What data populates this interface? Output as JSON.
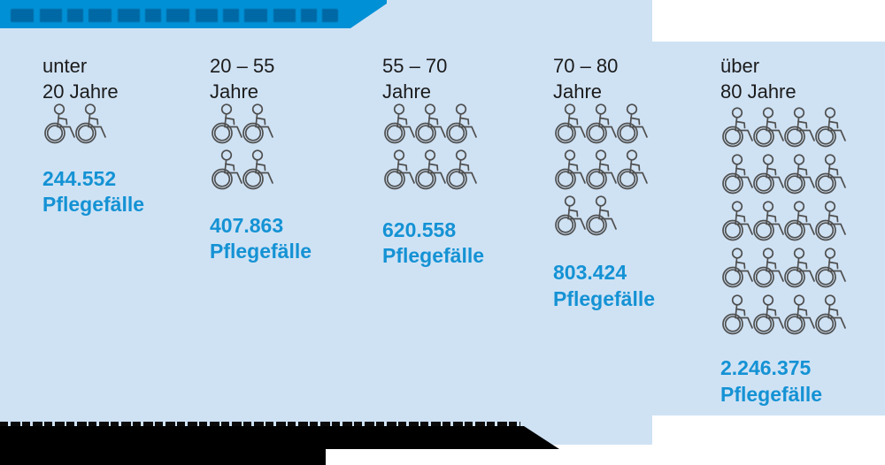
{
  "colors": {
    "panel_light_blue": "#cfe2f4",
    "banner_blue": "#0090d6",
    "value_blue": "#1492d4",
    "label_black": "#1b1b1b",
    "icon_gray": "#4f4f4f",
    "footer_black": "#000000"
  },
  "columns": [
    {
      "label_line1": "unter",
      "label_line2": "20 Jahre",
      "value": "244.552",
      "unit": "Pflegefälle",
      "icon_rows": [
        2
      ]
    },
    {
      "label_line1": "20 – 55",
      "label_line2": "Jahre",
      "value": "407.863",
      "unit": "Pflegefälle",
      "icon_rows": [
        2,
        2
      ]
    },
    {
      "label_line1": "55 – 70",
      "label_line2": "Jahre",
      "value": "620.558",
      "unit": "Pflegefälle",
      "icon_rows": [
        3,
        3
      ]
    },
    {
      "label_line1": "70 – 80",
      "label_line2": "Jahre",
      "value": "803.424",
      "unit": "Pflegefälle",
      "icon_rows": [
        3,
        3,
        2
      ]
    },
    {
      "label_line1": "über",
      "label_line2": "80 Jahre",
      "value": "2.246.375",
      "unit": "Pflegefälle",
      "icon_rows": [
        4,
        4,
        4,
        4,
        4
      ]
    }
  ],
  "chart_data": {
    "type": "bar",
    "variant": "pictogram",
    "icon": "wheelchair",
    "categories": [
      "unter 20 Jahre",
      "20 – 55 Jahre",
      "55 – 70 Jahre",
      "70 – 80 Jahre",
      "über 80 Jahre"
    ],
    "values": [
      244552,
      407863,
      620558,
      803424,
      2246375
    ],
    "value_labels": [
      "244.552",
      "407.863",
      "620.558",
      "803.424",
      "2.246.375"
    ],
    "unit": "Pflegefälle",
    "icons_per_category": [
      2,
      4,
      6,
      8,
      20
    ],
    "legend_position": "none",
    "grid": false
  }
}
